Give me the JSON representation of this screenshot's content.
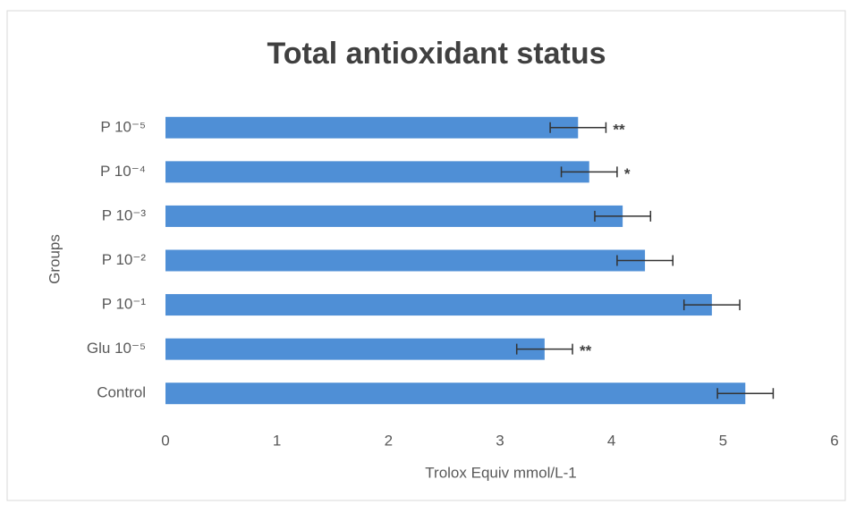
{
  "chart_data": {
    "type": "bar",
    "orientation": "horizontal",
    "title": "Total antioxidant status",
    "x_label": "Trolox Equiv mmol/L-1",
    "y_label": "Groups",
    "categories": [
      "Control",
      "Glu 10⁻⁵",
      "P 10⁻¹",
      "P 10⁻²",
      "P 10⁻³",
      "P 10⁻⁴",
      "P 10⁻⁵"
    ],
    "values": [
      5.2,
      3.4,
      4.9,
      4.3,
      4.1,
      3.8,
      3.7
    ],
    "errors": [
      0.25,
      0.25,
      0.25,
      0.25,
      0.25,
      0.25,
      0.25
    ],
    "annotations": [
      null,
      "**",
      null,
      null,
      null,
      "*",
      "**"
    ],
    "color": "#4f8fd6",
    "xlim": [
      0,
      6
    ],
    "xticks": [
      0,
      1,
      2,
      3,
      4,
      5,
      6
    ],
    "grid": false
  }
}
